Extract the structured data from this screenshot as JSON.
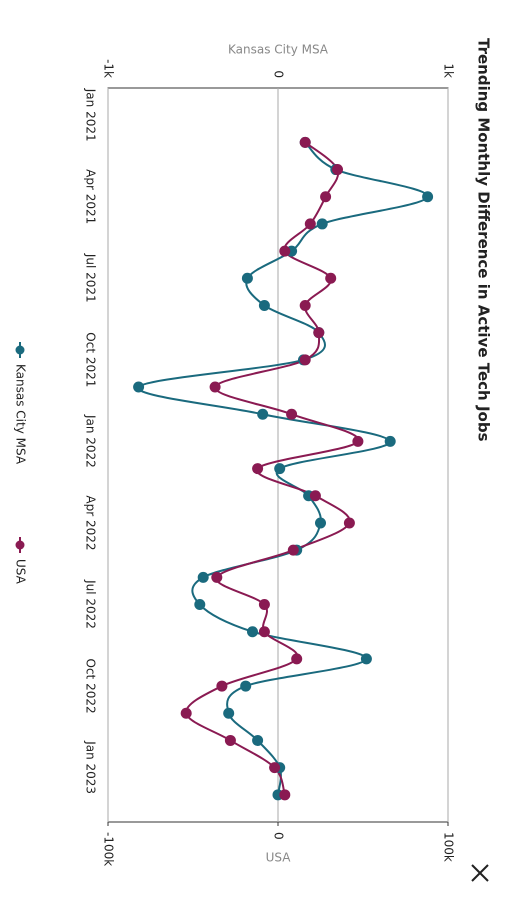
{
  "chart_data": {
    "type": "line",
    "title": "Trending Monthly Difference in Active Tech Jobs",
    "x": [
      "Feb 2021",
      "Mar 2021",
      "Apr 2021",
      "May 2021",
      "Jun 2021",
      "Jul 2021",
      "Aug 2021",
      "Sep 2021",
      "Oct 2021",
      "Nov 2021",
      "Dec 2021",
      "Jan 2022",
      "Feb 2022",
      "Mar 2022",
      "Apr 2022",
      "May 2022",
      "Jun 2022",
      "Jul 2022",
      "Aug 2022",
      "Sep 2022",
      "Oct 2022",
      "Nov 2022",
      "Dec 2022",
      "Jan 2023",
      "Feb 2023"
    ],
    "xlim": [
      "Dec 2020",
      "Mar 2023"
    ],
    "xticks": [
      "Jan 2021",
      "Apr 2021",
      "Jul 2021",
      "Oct 2021",
      "Jan 2022",
      "Apr 2022",
      "Jul 2022",
      "Oct 2022",
      "Jan 2023"
    ],
    "y_label": "Kansas City MSA",
    "y2_label": "USA",
    "ylim": [
      -1000,
      1000
    ],
    "yticks": [
      {
        "value": -1000,
        "label": "-1k"
      },
      0,
      {
        "value": 1000,
        "label": "1k"
      }
    ],
    "y2lim": [
      -100000,
      100000
    ],
    "y2ticks": [
      {
        "value": -100000,
        "label": "-100k"
      },
      0,
      {
        "value": 100000,
        "label": "100k"
      }
    ],
    "grid": true,
    "legend": "bottom",
    "series": [
      {
        "name": "Kansas City MSA",
        "color": "#1a6a7e",
        "axis": "y",
        "values": [
          160,
          340,
          880,
          260,
          80,
          -180,
          -80,
          240,
          150,
          -820,
          -90,
          660,
          10,
          180,
          250,
          110,
          -440,
          -460,
          -150,
          520,
          -190,
          -290,
          -120,
          10,
          0
        ]
      },
      {
        "name": "USA",
        "color": "#8a1a52",
        "axis": "y2",
        "values": [
          16000,
          35000,
          28000,
          19000,
          4000,
          31000,
          16000,
          24000,
          16000,
          -37000,
          8000,
          47000,
          -12000,
          22000,
          42000,
          9000,
          -36000,
          -8000,
          -8000,
          11000,
          -33000,
          -54000,
          -28000,
          -2000,
          4000
        ]
      }
    ]
  }
}
